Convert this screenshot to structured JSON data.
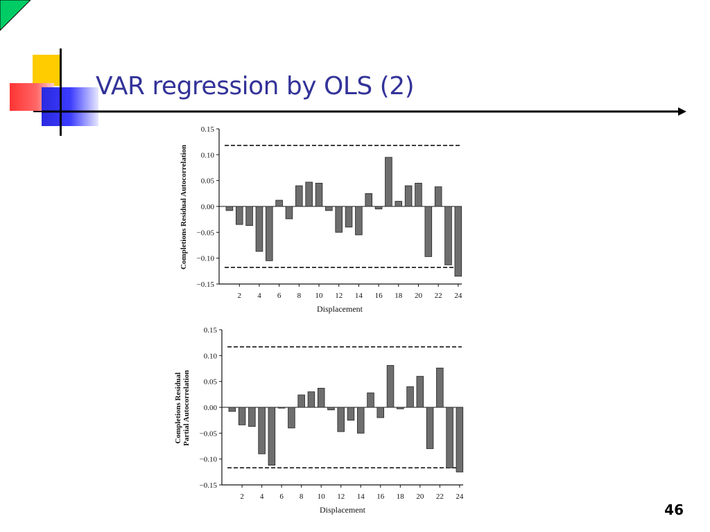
{
  "slide": {
    "title": "VAR regression by OLS (2)",
    "page_number": "46",
    "colors": {
      "title": "#333399",
      "accent_yellow": "#ffcc00",
      "accent_red": "#ff3333",
      "accent_blue": "#3333ff",
      "corner_green": "#00cc66"
    }
  },
  "chart_data": [
    {
      "type": "bar",
      "ylabel": "Completions Residual Autocorrelation",
      "xlabel": "Displacement",
      "x": [
        1,
        2,
        3,
        4,
        5,
        6,
        7,
        8,
        9,
        10,
        11,
        12,
        13,
        14,
        15,
        16,
        17,
        18,
        19,
        20,
        21,
        22,
        23,
        24
      ],
      "values": [
        -0.008,
        -0.035,
        -0.037,
        -0.087,
        -0.105,
        0.012,
        -0.024,
        0.04,
        0.047,
        0.045,
        -0.008,
        -0.05,
        -0.04,
        -0.055,
        0.025,
        -0.005,
        0.095,
        0.01,
        0.04,
        0.045,
        -0.097,
        0.038,
        -0.113,
        -0.135
      ],
      "xticks": [
        2,
        4,
        6,
        8,
        10,
        12,
        14,
        16,
        18,
        20,
        22,
        24
      ],
      "yticks": [
        0.15,
        0.1,
        0.05,
        0.0,
        -0.05,
        -0.1,
        -0.15
      ],
      "ytick_labels": [
        "0.15",
        "0.10",
        "0.05",
        "0.00",
        "−0.05",
        "−0.10",
        "−0.15"
      ],
      "ylim": [
        -0.15,
        0.15
      ],
      "bands": [
        0.118,
        -0.118
      ]
    },
    {
      "type": "bar",
      "ylabel": "Completions Residual Partial Autocorrelation",
      "ylabel_lines": [
        "Completions Residual",
        "Partial Autocorrelation"
      ],
      "xlabel": "Displacement",
      "x": [
        1,
        2,
        3,
        4,
        5,
        6,
        7,
        8,
        9,
        10,
        11,
        12,
        13,
        14,
        15,
        16,
        17,
        18,
        19,
        20,
        21,
        22,
        23,
        24
      ],
      "values": [
        -0.008,
        -0.034,
        -0.037,
        -0.09,
        -0.112,
        0.0,
        -0.04,
        0.024,
        0.03,
        0.037,
        -0.005,
        -0.047,
        -0.025,
        -0.05,
        0.028,
        -0.02,
        0.081,
        -0.003,
        0.04,
        0.06,
        -0.08,
        0.076,
        -0.117,
        -0.125
      ],
      "xticks": [
        2,
        4,
        6,
        8,
        10,
        12,
        14,
        16,
        18,
        20,
        22,
        24
      ],
      "yticks": [
        0.15,
        0.1,
        0.05,
        0.0,
        -0.05,
        -0.1,
        -0.15
      ],
      "ytick_labels": [
        "0.15",
        "0.10",
        "0.05",
        "0.00",
        "−0.05",
        "−0.10",
        "−0.15"
      ],
      "ylim": [
        -0.15,
        0.15
      ],
      "bands": [
        0.117,
        -0.117
      ]
    }
  ]
}
